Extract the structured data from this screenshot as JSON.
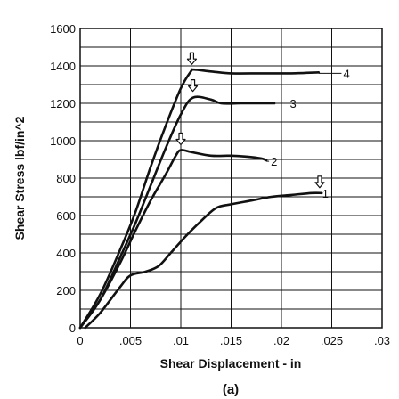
{
  "chart_data": {
    "type": "line",
    "title": "",
    "xlabel": "Shear Displacement - in",
    "ylabel": "Shear Stress lbf/in^2",
    "panel_label": "(a)",
    "xlim": [
      0,
      0.03
    ],
    "ylim": [
      0,
      1600
    ],
    "x_ticks": [
      "0",
      ".005",
      ".01",
      ".015",
      ".02",
      ".025",
      ".03"
    ],
    "y_ticks": [
      "0",
      "200",
      "400",
      "600",
      "800",
      "1000",
      "1200",
      "1400",
      "1600"
    ],
    "grid": true,
    "line_color": "#111111",
    "series": [
      {
        "name": "1",
        "points": [
          [
            0.0005,
            0
          ],
          [
            0.002,
            80
          ],
          [
            0.004,
            220
          ],
          [
            0.005,
            280
          ],
          [
            0.0065,
            300
          ],
          [
            0.0078,
            330
          ],
          [
            0.009,
            400
          ],
          [
            0.0105,
            490
          ],
          [
            0.012,
            570
          ],
          [
            0.0135,
            640
          ],
          [
            0.015,
            660
          ],
          [
            0.017,
            680
          ],
          [
            0.019,
            700
          ],
          [
            0.021,
            710
          ],
          [
            0.023,
            720
          ],
          [
            0.024,
            720
          ]
        ],
        "peak": [
          0.0238,
          720
        ]
      },
      {
        "name": "2",
        "points": [
          [
            0,
            0
          ],
          [
            0.002,
            150
          ],
          [
            0.004,
            350
          ],
          [
            0.0055,
            520
          ],
          [
            0.007,
            680
          ],
          [
            0.0085,
            820
          ],
          [
            0.0095,
            920
          ],
          [
            0.01,
            950
          ],
          [
            0.011,
            940
          ],
          [
            0.013,
            920
          ],
          [
            0.015,
            920
          ],
          [
            0.0165,
            915
          ],
          [
            0.018,
            905
          ],
          [
            0.0185,
            895
          ]
        ],
        "peak": [
          0.01,
          950
        ]
      },
      {
        "name": "3",
        "points": [
          [
            0,
            0
          ],
          [
            0.002,
            150
          ],
          [
            0.004,
            380
          ],
          [
            0.0055,
            560
          ],
          [
            0.007,
            760
          ],
          [
            0.0085,
            960
          ],
          [
            0.01,
            1140
          ],
          [
            0.0112,
            1230
          ],
          [
            0.013,
            1220
          ],
          [
            0.014,
            1200
          ],
          [
            0.016,
            1200
          ],
          [
            0.018,
            1200
          ],
          [
            0.0193,
            1200
          ]
        ],
        "peak": [
          0.0112,
          1235
        ]
      },
      {
        "name": "4",
        "points": [
          [
            0,
            0
          ],
          [
            0.002,
            180
          ],
          [
            0.004,
            420
          ],
          [
            0.0055,
            620
          ],
          [
            0.007,
            860
          ],
          [
            0.0085,
            1080
          ],
          [
            0.01,
            1280
          ],
          [
            0.011,
            1370
          ],
          [
            0.0113,
            1380
          ],
          [
            0.013,
            1370
          ],
          [
            0.015,
            1360
          ],
          [
            0.018,
            1360
          ],
          [
            0.021,
            1360
          ],
          [
            0.0237,
            1365
          ]
        ],
        "peak": [
          0.0111,
          1380
        ]
      }
    ],
    "annotations": [
      {
        "text": "4",
        "x": 0.0265,
        "y": 1360,
        "leader_from_x": 0.0237
      },
      {
        "text": "3",
        "x": 0.0212,
        "y": 1200,
        "leader_from_x": 0.0193
      },
      {
        "text": "2",
        "x": 0.0193,
        "y": 890,
        "leader_from_x": 0.0185
      },
      {
        "text": "1",
        "x": 0.0244,
        "y": 720,
        "leader_from_x": 0.024
      }
    ],
    "peak_marker": "down-arrow-icon"
  }
}
